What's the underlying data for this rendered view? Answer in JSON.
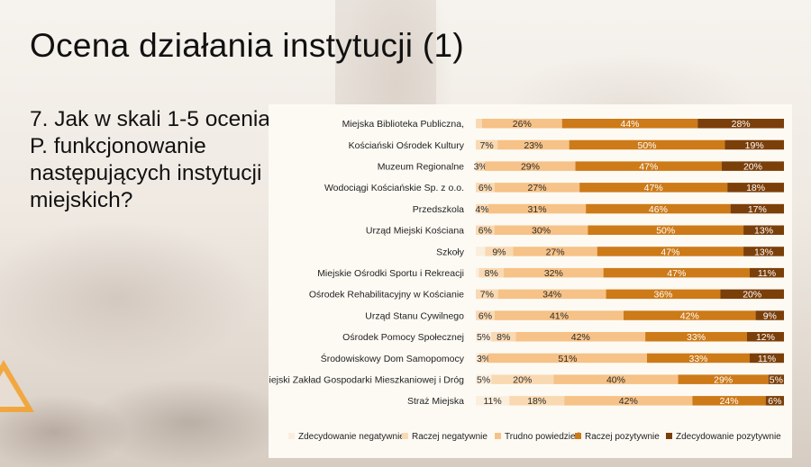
{
  "slide": {
    "title": "Ocena działania instytucji (1)",
    "question": "7. Jak w skali 1-5 ocenia P. funkcjonowanie następujących instytucji miejskich?"
  },
  "colors": {
    "Zdecydowanie negatywnie": "#fbeedd",
    "Raczej negatywnie": "#f9d9b2",
    "Trudno powiedzieć": "#f6c287",
    "Raczej pozytywnie": "#cd7a18",
    "Zdecydowanie pozytywnie": "#7b3f0a"
  },
  "chart_data": {
    "type": "bar",
    "orientation": "horizontal",
    "stacked": true,
    "percent_stacked": true,
    "xlim": [
      0,
      100
    ],
    "grid": false,
    "legend_position": "bottom",
    "categories": [
      "Miejska Biblioteka Publiczna,",
      "Kościański Ośrodek Kultury",
      "Muzeum Regionalne",
      "Wodociągi Kościańskie Sp. z o.o.",
      "Przedszkola",
      "Urząd Miejski Kościana",
      "Szkoły",
      "Miejskie Ośrodki Sportu i Rekreacji",
      "Ośrodek Rehabilitacyjny w Kościanie",
      "Urząd Stanu Cywilnego",
      "Ośrodek Pomocy Społecznej",
      "Środowiskowy Dom Samopomocy",
      "Miejski Zakład Gospodarki Mieszkaniowej i Dróg",
      "Straż Miejska"
    ],
    "series": [
      {
        "name": "Zdecydowanie negatywnie",
        "values": [
          0,
          0,
          0,
          0,
          0,
          0,
          3,
          1,
          0,
          0,
          5,
          1,
          5,
          11
        ],
        "labels": [
          "",
          "",
          "",
          "",
          "",
          "",
          "",
          "",
          "",
          "",
          "5%",
          "",
          "5%",
          "11%"
        ]
      },
      {
        "name": "Raczej negatywnie",
        "values": [
          2,
          7,
          3,
          6,
          4,
          6,
          9,
          8,
          7,
          6,
          8,
          3,
          20,
          18
        ],
        "labels": [
          "",
          "7%",
          "3%",
          "6%",
          "4%",
          "6%",
          "9%",
          "8%",
          "7%",
          "6%",
          "8%",
          "3%",
          "20%",
          "18%"
        ]
      },
      {
        "name": "Trudno powiedzieć",
        "values": [
          26,
          23,
          29,
          27,
          31,
          30,
          27,
          32,
          34,
          41,
          42,
          51,
          40,
          42
        ],
        "labels": [
          "26%",
          "23%",
          "29%",
          "27%",
          "31%",
          "30%",
          "27%",
          "32%",
          "34%",
          "41%",
          "42%",
          "51%",
          "40%",
          "42%"
        ]
      },
      {
        "name": "Raczej pozytywnie",
        "values": [
          44,
          50,
          47,
          47,
          46,
          50,
          47,
          47,
          36,
          42,
          33,
          33,
          29,
          24
        ],
        "labels": [
          "44%",
          "50%",
          "47%",
          "47%",
          "46%",
          "50%",
          "47%",
          "47%",
          "36%",
          "42%",
          "33%",
          "33%",
          "29%",
          "24%"
        ]
      },
      {
        "name": "Zdecydowanie pozytywnie",
        "values": [
          28,
          19,
          20,
          18,
          17,
          13,
          13,
          11,
          20,
          9,
          12,
          11,
          5,
          6
        ],
        "labels": [
          "28%",
          "19%",
          "20%",
          "18%",
          "17%",
          "13%",
          "13%",
          "11%",
          "20%",
          "9%",
          "12%",
          "11%",
          "5%",
          "6%"
        ]
      }
    ]
  }
}
